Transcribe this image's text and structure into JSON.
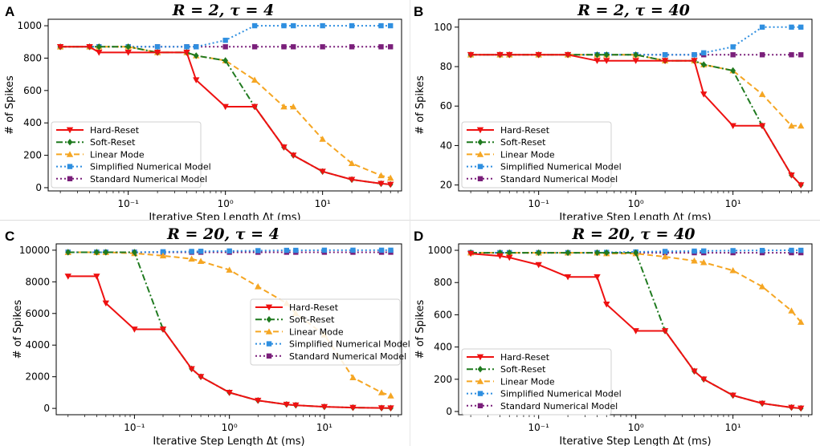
{
  "chart_data": [
    {
      "type": "line",
      "panel": "A",
      "title": "R = 2, τ = 4",
      "xlabel": "Iterative Step Length Δt (ms)",
      "ylabel": "# of Spikes",
      "xscale": "log",
      "xlim": [
        0.015,
        65
      ],
      "ylim": [
        -20,
        1040
      ],
      "yticks": [
        0,
        200,
        400,
        600,
        800,
        1000
      ],
      "xticks": [
        {
          "value": 0.1,
          "label": "10⁻¹"
        },
        {
          "value": 1,
          "label": "10⁰"
        },
        {
          "value": 10,
          "label": "10¹"
        }
      ],
      "legend_position": "lower-left",
      "x": [
        0.02,
        0.04,
        0.05,
        0.1,
        0.2,
        0.4,
        0.5,
        1,
        2,
        4,
        5,
        10,
        20,
        40,
        50
      ],
      "series": [
        {
          "name": "Hard-Reset",
          "color": "#ee1111",
          "dash": "solid",
          "marker": "triangle-down",
          "values": [
            870,
            870,
            835,
            835,
            835,
            835,
            665,
            500,
            500,
            250,
            200,
            100,
            50,
            25,
            20
          ]
        },
        {
          "name": "Soft-Reset",
          "color": "#1f7a1f",
          "dash": "dashdot",
          "marker": "diamond",
          "values": [
            870,
            870,
            870,
            870,
            835,
            835,
            815,
            785,
            500,
            250,
            200,
            100,
            50,
            25,
            20
          ]
        },
        {
          "name": "Linear Mode",
          "color": "#f5a623",
          "dash": "dashed",
          "marker": "triangle-up",
          "values": [
            870,
            870,
            870,
            870,
            835,
            835,
            815,
            785,
            665,
            500,
            500,
            300,
            150,
            75,
            60
          ]
        },
        {
          "name": "Simplified Numerical Model",
          "color": "#2f8fe0",
          "dash": "dotted",
          "marker": "square",
          "values": [
            870,
            870,
            870,
            870,
            870,
            870,
            870,
            910,
            1000,
            1000,
            1000,
            1000,
            1000,
            1000,
            1000
          ]
        },
        {
          "name": "Standard Numerical Model",
          "color": "#7a1f7a",
          "dash": "dotted",
          "marker": "square",
          "values": [
            870,
            870,
            870,
            870,
            870,
            870,
            870,
            870,
            870,
            870,
            870,
            870,
            870,
            870,
            870
          ]
        }
      ]
    },
    {
      "type": "line",
      "panel": "B",
      "title": "R = 2, τ = 40",
      "xlabel": "Iterative Step Length Δt (ms)",
      "ylabel": "# of Spikes",
      "xscale": "log",
      "xlim": [
        0.015,
        65
      ],
      "ylim": [
        17,
        104
      ],
      "yticks": [
        20,
        40,
        60,
        80,
        100
      ],
      "xticks": [
        {
          "value": 0.1,
          "label": "10⁻¹"
        },
        {
          "value": 1,
          "label": "10⁰"
        },
        {
          "value": 10,
          "label": "10¹"
        }
      ],
      "legend_position": "lower-left",
      "x": [
        0.02,
        0.04,
        0.05,
        0.1,
        0.2,
        0.4,
        0.5,
        1,
        2,
        4,
        5,
        10,
        20,
        40,
        50
      ],
      "series": [
        {
          "name": "Hard-Reset",
          "color": "#ee1111",
          "dash": "solid",
          "marker": "triangle-down",
          "values": [
            86,
            86,
            86,
            86,
            86,
            83,
            83,
            83,
            83,
            83,
            66,
            50,
            50,
            25,
            20
          ]
        },
        {
          "name": "Soft-Reset",
          "color": "#1f7a1f",
          "dash": "dashdot",
          "marker": "diamond",
          "values": [
            86,
            86,
            86,
            86,
            86,
            86,
            86,
            86,
            83,
            83,
            81,
            78,
            50,
            25,
            20
          ]
        },
        {
          "name": "Linear Mode",
          "color": "#f5a623",
          "dash": "dashed",
          "marker": "triangle-up",
          "values": [
            86,
            86,
            86,
            86,
            86,
            86,
            86,
            86,
            83,
            83,
            81,
            78,
            66,
            50,
            50
          ]
        },
        {
          "name": "Simplified Numerical Model",
          "color": "#2f8fe0",
          "dash": "dotted",
          "marker": "square",
          "values": [
            86,
            86,
            86,
            86,
            86,
            86,
            86,
            86,
            86,
            86,
            87,
            90,
            100,
            100,
            100
          ]
        },
        {
          "name": "Standard Numerical Model",
          "color": "#7a1f7a",
          "dash": "dotted",
          "marker": "square",
          "values": [
            86,
            86,
            86,
            86,
            86,
            86,
            86,
            86,
            86,
            86,
            86,
            86,
            86,
            86,
            86
          ]
        }
      ]
    },
    {
      "type": "line",
      "panel": "C",
      "title": "R = 20, τ = 4",
      "xlabel": "Iterative Step Length Δt (ms)",
      "ylabel": "# of Spikes",
      "xscale": "log",
      "xlim": [
        0.015,
        65
      ],
      "ylim": [
        -400,
        10400
      ],
      "yticks": [
        0,
        2000,
        4000,
        6000,
        8000,
        10000
      ],
      "xticks": [
        {
          "value": 0.1,
          "label": "10⁻¹"
        },
        {
          "value": 1,
          "label": "10⁰"
        },
        {
          "value": 10,
          "label": "10¹"
        }
      ],
      "legend_position": "center-right",
      "x": [
        0.02,
        0.04,
        0.05,
        0.1,
        0.2,
        0.4,
        0.5,
        1,
        2,
        4,
        5,
        10,
        20,
        40,
        50
      ],
      "series": [
        {
          "name": "Hard-Reset",
          "color": "#ee1111",
          "dash": "solid",
          "marker": "triangle-down",
          "values": [
            8350,
            8350,
            6650,
            5000,
            5000,
            2500,
            2000,
            1000,
            500,
            250,
            200,
            100,
            50,
            25,
            20
          ]
        },
        {
          "name": "Soft-Reset",
          "color": "#1f7a1f",
          "dash": "dashdot",
          "marker": "diamond",
          "values": [
            9870,
            9870,
            9870,
            9870,
            5000,
            2500,
            2000,
            1000,
            500,
            250,
            200,
            100,
            50,
            25,
            20
          ]
        },
        {
          "name": "Linear Mode",
          "color": "#f5a623",
          "dash": "dashed",
          "marker": "triangle-up",
          "values": [
            9870,
            9870,
            9870,
            9800,
            9650,
            9450,
            9300,
            8750,
            7700,
            6650,
            6000,
            4650,
            1950,
            1000,
            800
          ]
        },
        {
          "name": "Simplified Numerical Model",
          "color": "#2f8fe0",
          "dash": "dotted",
          "marker": "square",
          "values": [
            9870,
            9870,
            9870,
            9870,
            9900,
            9920,
            9930,
            9950,
            9970,
            9990,
            9990,
            10000,
            10000,
            10000,
            10000
          ]
        },
        {
          "name": "Standard Numerical Model",
          "color": "#7a1f7a",
          "dash": "dotted",
          "marker": "square",
          "values": [
            9870,
            9870,
            9870,
            9870,
            9870,
            9870,
            9870,
            9870,
            9870,
            9870,
            9870,
            9870,
            9870,
            9870,
            9870
          ]
        }
      ]
    },
    {
      "type": "line",
      "panel": "D",
      "title": "R = 20, τ = 40",
      "xlabel": "Iterative Step Length Δt (ms)",
      "ylabel": "# of Spikes",
      "xscale": "log",
      "xlim": [
        0.015,
        65
      ],
      "ylim": [
        -20,
        1040
      ],
      "yticks": [
        0,
        200,
        400,
        600,
        800,
        1000
      ],
      "xticks": [
        {
          "value": 0.1,
          "label": "10⁻¹"
        },
        {
          "value": 1,
          "label": "10⁰"
        },
        {
          "value": 10,
          "label": "10¹"
        }
      ],
      "legend_position": "lower-left",
      "x": [
        0.02,
        0.04,
        0.05,
        0.1,
        0.2,
        0.4,
        0.5,
        1,
        2,
        4,
        5,
        10,
        20,
        40,
        50
      ],
      "series": [
        {
          "name": "Hard-Reset",
          "color": "#ee1111",
          "dash": "solid",
          "marker": "triangle-down",
          "values": [
            980,
            965,
            955,
            910,
            835,
            835,
            665,
            500,
            500,
            250,
            200,
            100,
            50,
            25,
            20
          ]
        },
        {
          "name": "Soft-Reset",
          "color": "#1f7a1f",
          "dash": "dashdot",
          "marker": "diamond",
          "values": [
            985,
            985,
            985,
            985,
            985,
            985,
            985,
            985,
            500,
            250,
            200,
            100,
            50,
            25,
            20
          ]
        },
        {
          "name": "Linear Mode",
          "color": "#f5a623",
          "dash": "dashed",
          "marker": "triangle-up",
          "values": [
            985,
            985,
            985,
            985,
            985,
            985,
            980,
            980,
            960,
            935,
            925,
            875,
            775,
            625,
            555
          ]
        },
        {
          "name": "Simplified Numerical Model",
          "color": "#2f8fe0",
          "dash": "dotted",
          "marker": "square",
          "values": [
            985,
            985,
            985,
            985,
            985,
            985,
            987,
            990,
            993,
            995,
            996,
            998,
            999,
            1000,
            1000
          ]
        },
        {
          "name": "Standard Numerical Model",
          "color": "#7a1f7a",
          "dash": "dotted",
          "marker": "square",
          "values": [
            985,
            985,
            985,
            985,
            985,
            985,
            985,
            985,
            985,
            985,
            985,
            985,
            985,
            985,
            985
          ]
        }
      ]
    }
  ]
}
